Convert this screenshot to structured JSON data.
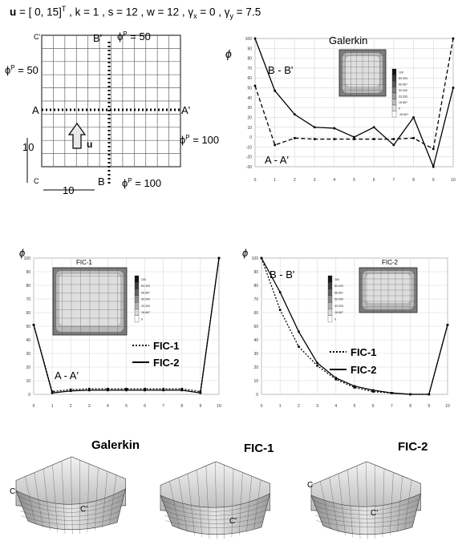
{
  "equation": {
    "u_symbol": "u",
    "u_value": " = [ 0, 15]",
    "u_transpose": "T",
    "rest": "  , k = 1 , s = 12 , w = 12 , ",
    "gamma": "γ",
    "gx_sub": "x",
    "gx_val": " = 0 , ",
    "gy_sub": "y",
    "gy_val": " = 7.5"
  },
  "domain_sketch": {
    "corner_top": "C'",
    "corner_bottom": "C",
    "label_B_top": "B'",
    "label_B_bottom": "B",
    "label_A_left": "A",
    "label_A_right": "A'",
    "phi_symbol": "ϕ",
    "phi_sup": "P",
    "bc_top": " = 50",
    "bc_left": " = 50",
    "bc_right": " = 100",
    "bc_bottom": " = 100",
    "velocity_label": "u",
    "dim_vertical": "10",
    "dim_horizontal": "10"
  },
  "charts": {
    "galerkin": {
      "inset_title": "Galerkin",
      "ylabel": "ϕ",
      "curve_label_top": "B - B'",
      "curve_label_bottom": "A - A'",
      "y_ticks": [
        "100",
        "90",
        "80",
        "70",
        "60",
        "50",
        "40",
        "30",
        "20",
        "10",
        "0",
        "-10",
        "-20",
        "-30"
      ],
      "x_ticks": [
        "0",
        "1",
        "2",
        "3",
        "4",
        "5",
        "6",
        "7",
        "8",
        "9",
        "10"
      ],
      "legend_values": [
        "100",
        "83.333",
        "66.667",
        "50.000",
        "33.333",
        "16.667",
        "0",
        "-16.667"
      ]
    },
    "fic1": {
      "inset_title": "FIC-1",
      "ylabel": "ϕ",
      "curve_label": "A - A'",
      "legend_dotted": "FIC-1",
      "legend_solid": "FIC-2",
      "y_ticks": [
        "100",
        "90",
        "80",
        "70",
        "60",
        "50",
        "40",
        "30",
        "20",
        "10",
        "0"
      ],
      "x_ticks": [
        "0",
        "1",
        "2",
        "3",
        "4",
        "5",
        "6",
        "7",
        "8",
        "9",
        "10"
      ],
      "legend_values": [
        "100",
        "83.333",
        "66.667",
        "50.000",
        "33.333",
        "16.667",
        "0"
      ]
    },
    "fic2": {
      "inset_title": "FIC-2",
      "ylabel": "ϕ",
      "curve_label": "B - B'",
      "legend_dotted": "FIC-1",
      "legend_solid": "FIC-2",
      "y_ticks": [
        "100",
        "90",
        "80",
        "70",
        "60",
        "50",
        "40",
        "30",
        "20",
        "10",
        "0"
      ],
      "x_ticks": [
        "0",
        "1",
        "2",
        "3",
        "4",
        "5",
        "6",
        "7",
        "8",
        "9",
        "10"
      ],
      "legend_values": [
        "100",
        "83.333",
        "66.667",
        "50.000",
        "33.333",
        "16.667",
        "0"
      ]
    }
  },
  "surfaces": {
    "galerkin_title": "Galerkin",
    "fic1_title": "FIC-1",
    "fic2_title": "FIC-2",
    "corner_c": "C",
    "corner_c_prime": "C'"
  },
  "chart_data": [
    {
      "type": "line",
      "x": [
        0,
        1,
        2,
        3,
        4,
        5,
        6,
        7,
        8,
        9,
        10
      ],
      "ylim": [
        -30,
        100
      ],
      "xlim": [
        0,
        10
      ],
      "series": [
        {
          "values": [
            100,
            47,
            23,
            10,
            9,
            0,
            10,
            -8,
            20,
            -30,
            50
          ]
        },
        {
          "values": [
            52,
            -8,
            -1,
            -2,
            -2,
            -2,
            -2,
            -2,
            -1,
            -12,
            100
          ]
        }
      ]
    },
    {
      "type": "line",
      "x": [
        0,
        1,
        2,
        3,
        4,
        5,
        6,
        7,
        8,
        9,
        10
      ],
      "ylim": [
        0,
        100
      ],
      "xlim": [
        0,
        10
      ],
      "series": [
        {
          "name": "FIC-1",
          "values": [
            51,
            2,
            3.5,
            4,
            4,
            4,
            4,
            4,
            4,
            2,
            100
          ]
        },
        {
          "name": "FIC-2",
          "values": [
            51,
            1,
            2.5,
            3,
            3,
            3,
            3,
            3,
            3,
            1,
            100
          ]
        }
      ]
    },
    {
      "type": "line",
      "x": [
        0,
        1,
        2,
        3,
        4,
        5,
        6,
        7,
        8,
        9,
        10
      ],
      "ylim": [
        0,
        100
      ],
      "xlim": [
        0,
        10
      ],
      "series": [
        {
          "name": "FIC-1",
          "values": [
            100,
            62,
            35,
            21,
            11,
            5,
            2,
            1,
            0,
            0,
            51
          ]
        },
        {
          "name": "FIC-2",
          "values": [
            100,
            75,
            46,
            23,
            12,
            6,
            3,
            1,
            0,
            0,
            51
          ]
        }
      ]
    }
  ]
}
